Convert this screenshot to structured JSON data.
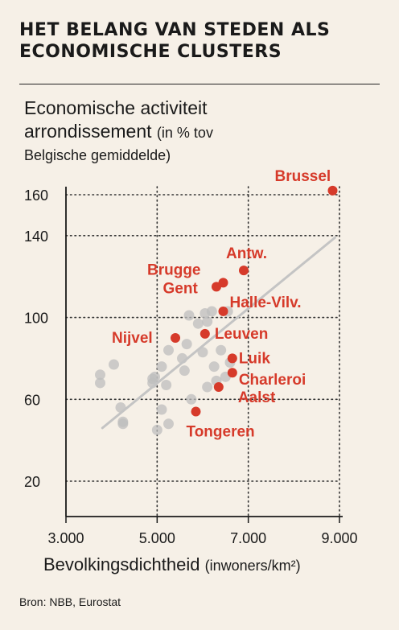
{
  "title": "HET BELANG VAN STEDEN ALS\nECONOMISCHE CLUSTERS",
  "ylabel_main_1": "Economische activiteit",
  "ylabel_main_2": "arrondissement",
  "ylabel_small_2": "(in % tov",
  "ylabel_small_3": "Belgische gemiddelde)",
  "xlabel_main": "Bevolkingsdichtheid",
  "xlabel_small": "(inwoners/km²)",
  "source": "Bron: NBB, Eurostat",
  "colors": {
    "background": "#f6f0e7",
    "highlight": "#d63a2a",
    "others": "#bdbdbd",
    "trend": "#c4c4c4",
    "grid": "#333333"
  },
  "chart_data": {
    "type": "scatter",
    "xlim": [
      3000,
      9000
    ],
    "ylim": [
      0,
      170
    ],
    "xticks": [
      3000,
      5000,
      7000,
      9000
    ],
    "xtick_labels": [
      "3.000",
      "5.000",
      "7.000",
      "9.000"
    ],
    "yticks": [
      20,
      60,
      100,
      140,
      160
    ],
    "ytick_labels": [
      "20",
      "60",
      "100",
      "140",
      "160"
    ],
    "grid": true,
    "trendline": [
      [
        3800,
        46
      ],
      [
        8900,
        139
      ]
    ],
    "highlighted": [
      {
        "label": "Brussel",
        "x": 8850,
        "y": 162
      },
      {
        "label": "Antw.",
        "x": 6900,
        "y": 123
      },
      {
        "label": "Brugge",
        "x": 6300,
        "y": 115
      },
      {
        "label": "Gent",
        "x": 6450,
        "y": 117
      },
      {
        "label": "Halle-Vilv.",
        "x": 6450,
        "y": 103
      },
      {
        "label": "Nijvel",
        "x": 5400,
        "y": 90
      },
      {
        "label": "Leuven",
        "x": 6050,
        "y": 92
      },
      {
        "label": "Luik",
        "x": 6650,
        "y": 80
      },
      {
        "label": "Charleroi",
        "x": 6650,
        "y": 73
      },
      {
        "label": "Aalst",
        "x": 6350,
        "y": 66
      },
      {
        "label": "Tongeren",
        "x": 5850,
        "y": 54
      }
    ],
    "others": [
      {
        "x": 3750,
        "y": 72
      },
      {
        "x": 3750,
        "y": 68
      },
      {
        "x": 4050,
        "y": 77
      },
      {
        "x": 4200,
        "y": 56
      },
      {
        "x": 4250,
        "y": 49
      },
      {
        "x": 4250,
        "y": 48
      },
      {
        "x": 4900,
        "y": 70
      },
      {
        "x": 4900,
        "y": 68
      },
      {
        "x": 4950,
        "y": 71
      },
      {
        "x": 5100,
        "y": 76
      },
      {
        "x": 5200,
        "y": 67
      },
      {
        "x": 5250,
        "y": 84
      },
      {
        "x": 5100,
        "y": 55
      },
      {
        "x": 5250,
        "y": 48
      },
      {
        "x": 5000,
        "y": 45
      },
      {
        "x": 5550,
        "y": 80
      },
      {
        "x": 5650,
        "y": 87
      },
      {
        "x": 5600,
        "y": 74
      },
      {
        "x": 5750,
        "y": 60
      },
      {
        "x": 5700,
        "y": 101
      },
      {
        "x": 5900,
        "y": 97
      },
      {
        "x": 6050,
        "y": 102
      },
      {
        "x": 6200,
        "y": 103
      },
      {
        "x": 6100,
        "y": 98
      },
      {
        "x": 6000,
        "y": 83
      },
      {
        "x": 6100,
        "y": 66
      },
      {
        "x": 6250,
        "y": 76
      },
      {
        "x": 6300,
        "y": 69
      },
      {
        "x": 6400,
        "y": 84
      },
      {
        "x": 6550,
        "y": 103
      },
      {
        "x": 6600,
        "y": 78
      },
      {
        "x": 6500,
        "y": 71
      }
    ]
  }
}
